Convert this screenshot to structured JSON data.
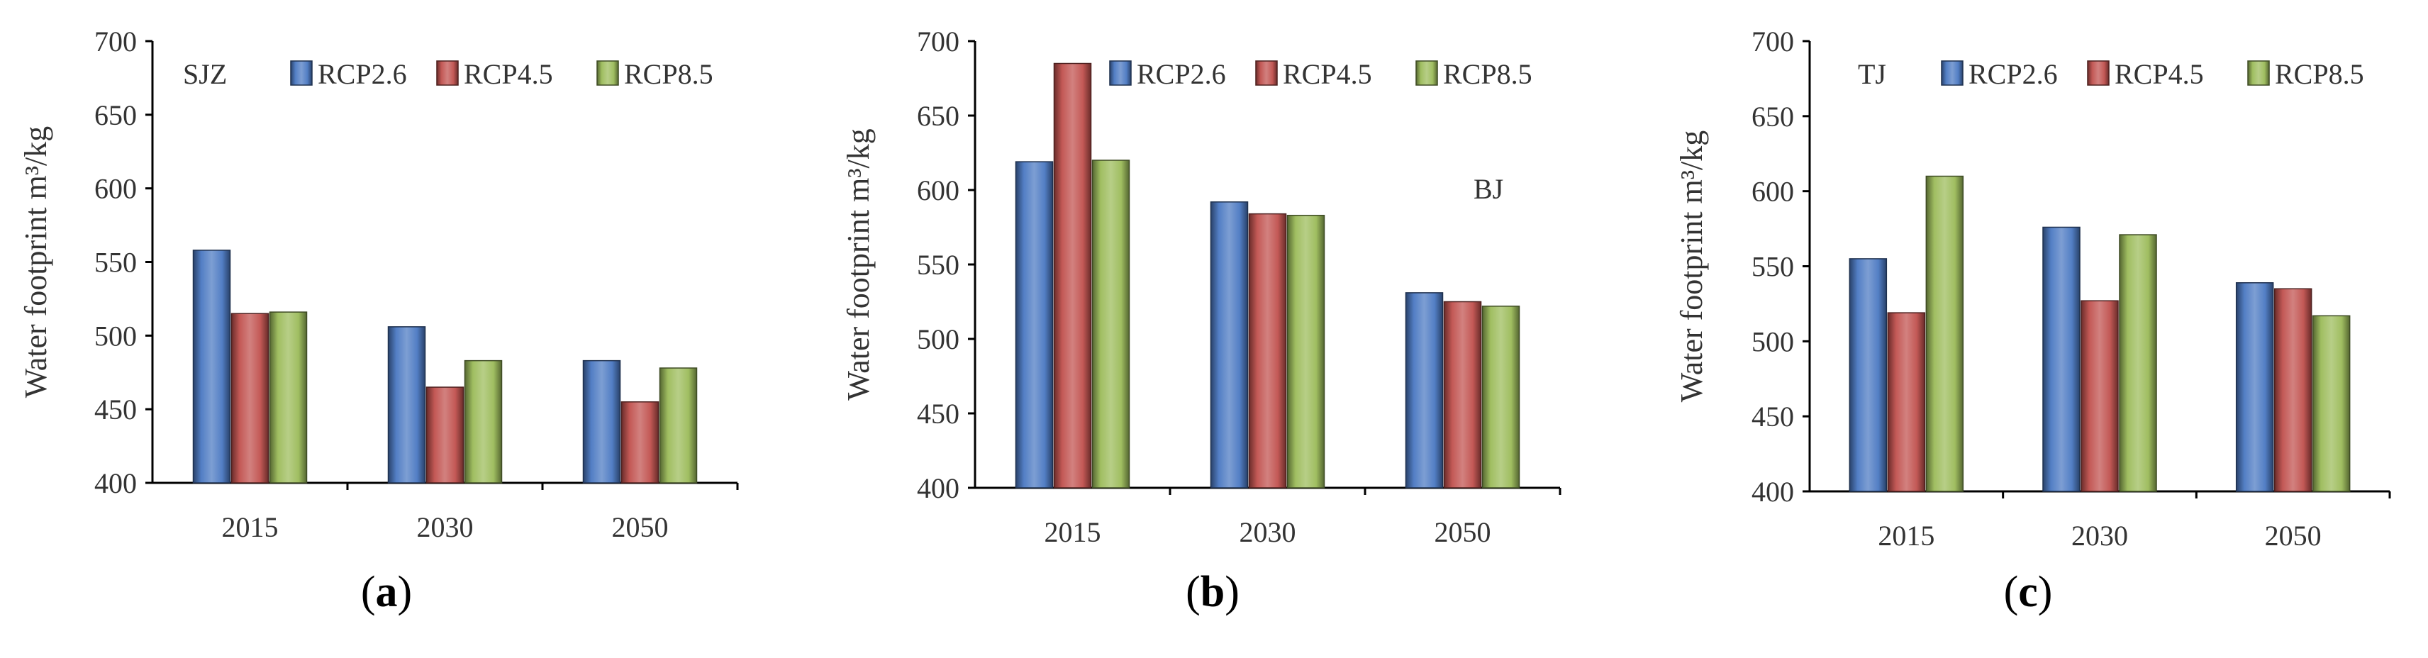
{
  "figure": {
    "panels": [
      {
        "letter": "a",
        "city": "SJZ"
      },
      {
        "letter": "b",
        "city": "BJ"
      },
      {
        "letter": "c",
        "city": "TJ"
      }
    ]
  },
  "chart_data": [
    {
      "type": "bar",
      "title": "",
      "annotation": "SJZ",
      "panel_label": "(a)",
      "xlabel": "",
      "ylabel": "Water footprint m³/kg",
      "categories": [
        "2015",
        "2030",
        "2050"
      ],
      "series": [
        {
          "name": "RCP2.6",
          "color": "#4a78c2",
          "values": [
            558,
            506,
            483
          ]
        },
        {
          "name": "RCP4.5",
          "color": "#c0504d",
          "values": [
            515,
            465,
            455
          ]
        },
        {
          "name": "RCP8.5",
          "color": "#9bbb59",
          "values": [
            516,
            483,
            478
          ]
        }
      ],
      "ylim": [
        400,
        700
      ],
      "yticks": [
        400,
        450,
        500,
        550,
        600,
        650,
        700
      ],
      "legend": "top",
      "grid": false
    },
    {
      "type": "bar",
      "title": "",
      "annotation": "BJ",
      "panel_label": "(b)",
      "xlabel": "",
      "ylabel": "Water footprint m³/kg",
      "categories": [
        "2015",
        "2030",
        "2050"
      ],
      "series": [
        {
          "name": "RCP2.6",
          "color": "#4a78c2",
          "values": [
            619,
            592,
            531
          ]
        },
        {
          "name": "RCP4.5",
          "color": "#c0504d",
          "values": [
            685,
            584,
            525
          ]
        },
        {
          "name": "RCP8.5",
          "color": "#9bbb59",
          "values": [
            620,
            583,
            522
          ]
        }
      ],
      "ylim": [
        400,
        700
      ],
      "yticks": [
        400,
        450,
        500,
        550,
        600,
        650,
        700
      ],
      "legend": "top",
      "grid": false
    },
    {
      "type": "bar",
      "title": "",
      "annotation": "TJ",
      "panel_label": "(c)",
      "xlabel": "",
      "ylabel": "Water footprint m³/kg",
      "categories": [
        "2015",
        "2030",
        "2050"
      ],
      "series": [
        {
          "name": "RCP2.6",
          "color": "#4a78c2",
          "values": [
            555,
            576,
            539
          ]
        },
        {
          "name": "RCP4.5",
          "color": "#c0504d",
          "values": [
            519,
            527,
            535
          ]
        },
        {
          "name": "RCP8.5",
          "color": "#9bbb59",
          "values": [
            610,
            571,
            517
          ]
        }
      ],
      "ylim": [
        400,
        700
      ],
      "yticks": [
        400,
        450,
        500,
        550,
        600,
        650,
        700
      ],
      "legend": "top",
      "grid": false
    }
  ]
}
